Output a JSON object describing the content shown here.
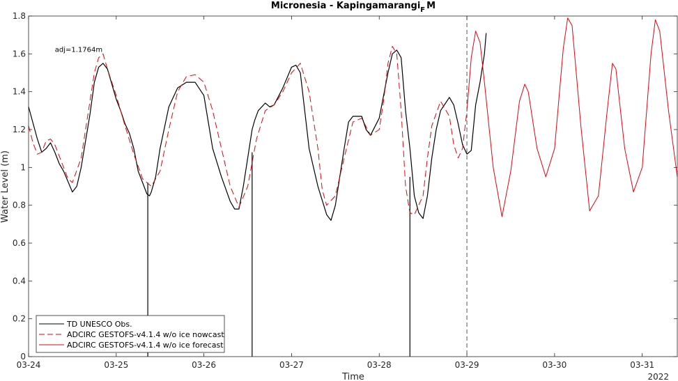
{
  "chart_data": {
    "type": "line",
    "title_main": "Micronesia - Kapingamarangi",
    "title_sub": "F",
    "title_tail": "M",
    "xlabel": "Time",
    "ylabel": "Water Level (m)",
    "xlim": [
      0,
      7.4
    ],
    "ylim": [
      0,
      1.8
    ],
    "x_tick_values": [
      0,
      1,
      2,
      3,
      4,
      5,
      6,
      7
    ],
    "x_tick_labels": [
      "03-24",
      "03-25",
      "03-26",
      "03-27",
      "03-28",
      "03-29",
      "03-30",
      "03-31"
    ],
    "year_label": "2022",
    "y_tick_values": [
      0,
      0.2,
      0.4,
      0.6,
      0.8,
      1,
      1.2,
      1.4,
      1.6,
      1.8
    ],
    "y_tick_labels": [
      "0",
      "0.2",
      "0.4",
      "0.6",
      "0.8",
      "1",
      "1.2",
      "1.4",
      "1.6",
      "1.8"
    ],
    "annotation": {
      "text": "adj=1.1764m",
      "x": 0.3,
      "y": 1.61
    },
    "nowcast_end_x": 5.0,
    "legend_position": "bottom-left",
    "series": [
      {
        "name": "TD UNESCO Obs.",
        "color": "#000000",
        "style": "solid",
        "x": [
          0,
          0.1,
          0.15,
          0.2,
          0.25,
          0.3,
          0.35,
          0.4,
          0.5,
          0.55,
          0.6,
          0.7,
          0.75,
          0.8,
          0.85,
          0.9,
          0.95,
          1.0,
          1.05,
          1.1,
          1.15,
          1.2,
          1.25,
          1.3,
          1.35,
          1.38,
          1.4,
          1.45,
          1.5,
          1.6,
          1.7,
          1.8,
          1.9,
          2.0,
          2.05,
          2.1,
          2.2,
          2.3,
          2.35,
          2.4,
          2.45,
          2.5,
          2.55,
          2.58,
          2.62,
          2.7,
          2.75,
          2.8,
          2.9,
          3.0,
          3.05,
          3.1,
          3.15,
          3.2,
          3.3,
          3.4,
          3.45,
          3.5,
          3.6,
          3.65,
          3.7,
          3.8,
          3.85,
          3.9,
          4.0,
          4.1,
          4.15,
          4.2,
          4.25,
          4.3,
          4.35,
          4.4,
          4.45,
          4.5,
          4.55,
          4.6,
          4.65,
          4.7,
          4.8,
          4.85,
          4.9,
          4.95,
          5.0,
          5.05,
          5.1,
          5.15,
          5.2,
          5.22
        ],
        "y": [
          1.32,
          1.15,
          1.08,
          1.1,
          1.13,
          1.08,
          1.02,
          0.98,
          0.87,
          0.9,
          1.0,
          1.28,
          1.45,
          1.53,
          1.55,
          1.52,
          1.44,
          1.36,
          1.3,
          1.23,
          1.18,
          1.1,
          0.98,
          0.92,
          0.86,
          0.85,
          0.87,
          0.95,
          1.1,
          1.32,
          1.42,
          1.45,
          1.45,
          1.38,
          1.24,
          1.1,
          0.95,
          0.82,
          0.78,
          0.78,
          0.9,
          1.05,
          1.2,
          1.25,
          1.3,
          1.34,
          1.32,
          1.33,
          1.42,
          1.53,
          1.54,
          1.5,
          1.3,
          1.1,
          0.9,
          0.75,
          0.72,
          0.8,
          1.1,
          1.24,
          1.27,
          1.27,
          1.2,
          1.17,
          1.26,
          1.5,
          1.6,
          1.62,
          1.58,
          1.3,
          1.1,
          0.85,
          0.76,
          0.73,
          0.85,
          1.05,
          1.2,
          1.3,
          1.37,
          1.33,
          1.23,
          1.12,
          1.07,
          1.09,
          1.33,
          1.45,
          1.6,
          1.71
        ],
        "dropouts": [
          {
            "x": 1.36,
            "from": 0.92
          },
          {
            "x": 2.55,
            "from": 1.08
          },
          {
            "x": 4.35,
            "from": 0.95
          }
        ]
      },
      {
        "name": "ADCIRC GESTOFS-v4.1.4 w/o ice nowcast",
        "color": "#e8000b",
        "style": "dashed",
        "x": [
          0,
          0.05,
          0.1,
          0.15,
          0.2,
          0.25,
          0.3,
          0.4,
          0.45,
          0.5,
          0.6,
          0.7,
          0.75,
          0.8,
          0.85,
          0.9,
          1.0,
          1.1,
          1.2,
          1.3,
          1.4,
          1.5,
          1.6,
          1.7,
          1.8,
          1.9,
          2.0,
          2.1,
          2.2,
          2.3,
          2.4,
          2.5,
          2.6,
          2.7,
          2.8,
          2.9,
          3.0,
          3.1,
          3.2,
          3.3,
          3.35,
          3.4,
          3.5,
          3.6,
          3.7,
          3.8,
          3.9,
          4.0,
          4.05,
          4.1,
          4.15,
          4.2,
          4.25,
          4.3,
          4.35,
          4.4,
          4.5,
          4.55,
          4.6,
          4.7,
          4.8,
          4.85,
          4.9,
          4.95,
          5.0
        ],
        "y": [
          1.22,
          1.13,
          1.07,
          1.08,
          1.14,
          1.15,
          1.12,
          1.0,
          0.94,
          0.92,
          1.05,
          1.35,
          1.5,
          1.58,
          1.6,
          1.52,
          1.38,
          1.22,
          1.07,
          0.94,
          0.9,
          0.98,
          1.2,
          1.4,
          1.48,
          1.49,
          1.45,
          1.3,
          1.1,
          0.9,
          0.79,
          0.9,
          1.15,
          1.3,
          1.33,
          1.4,
          1.5,
          1.55,
          1.4,
          1.1,
          0.88,
          0.8,
          0.85,
          1.05,
          1.24,
          1.26,
          1.17,
          1.2,
          1.35,
          1.55,
          1.64,
          1.6,
          1.3,
          0.9,
          0.76,
          0.75,
          0.85,
          1.05,
          1.22,
          1.35,
          1.27,
          1.12,
          1.05,
          1.1,
          1.3
        ]
      },
      {
        "name": "ADCIRC GESTOFS-v4.1.4 w/o ice forecast",
        "color": "#e8000b",
        "style": "solid",
        "x": [
          5.0,
          5.05,
          5.1,
          5.15,
          5.2,
          5.3,
          5.4,
          5.5,
          5.6,
          5.66,
          5.7,
          5.8,
          5.9,
          6.0,
          6.1,
          6.15,
          6.2,
          6.3,
          6.4,
          6.5,
          6.6,
          6.66,
          6.7,
          6.8,
          6.9,
          7.0,
          7.1,
          7.15,
          7.2,
          7.3,
          7.4
        ],
        "y": [
          1.3,
          1.58,
          1.72,
          1.66,
          1.45,
          1.0,
          0.74,
          0.98,
          1.35,
          1.44,
          1.4,
          1.1,
          0.95,
          1.1,
          1.63,
          1.79,
          1.75,
          1.22,
          0.77,
          0.85,
          1.3,
          1.55,
          1.52,
          1.1,
          0.87,
          1.0,
          1.6,
          1.78,
          1.72,
          1.3,
          0.95
        ]
      }
    ]
  }
}
